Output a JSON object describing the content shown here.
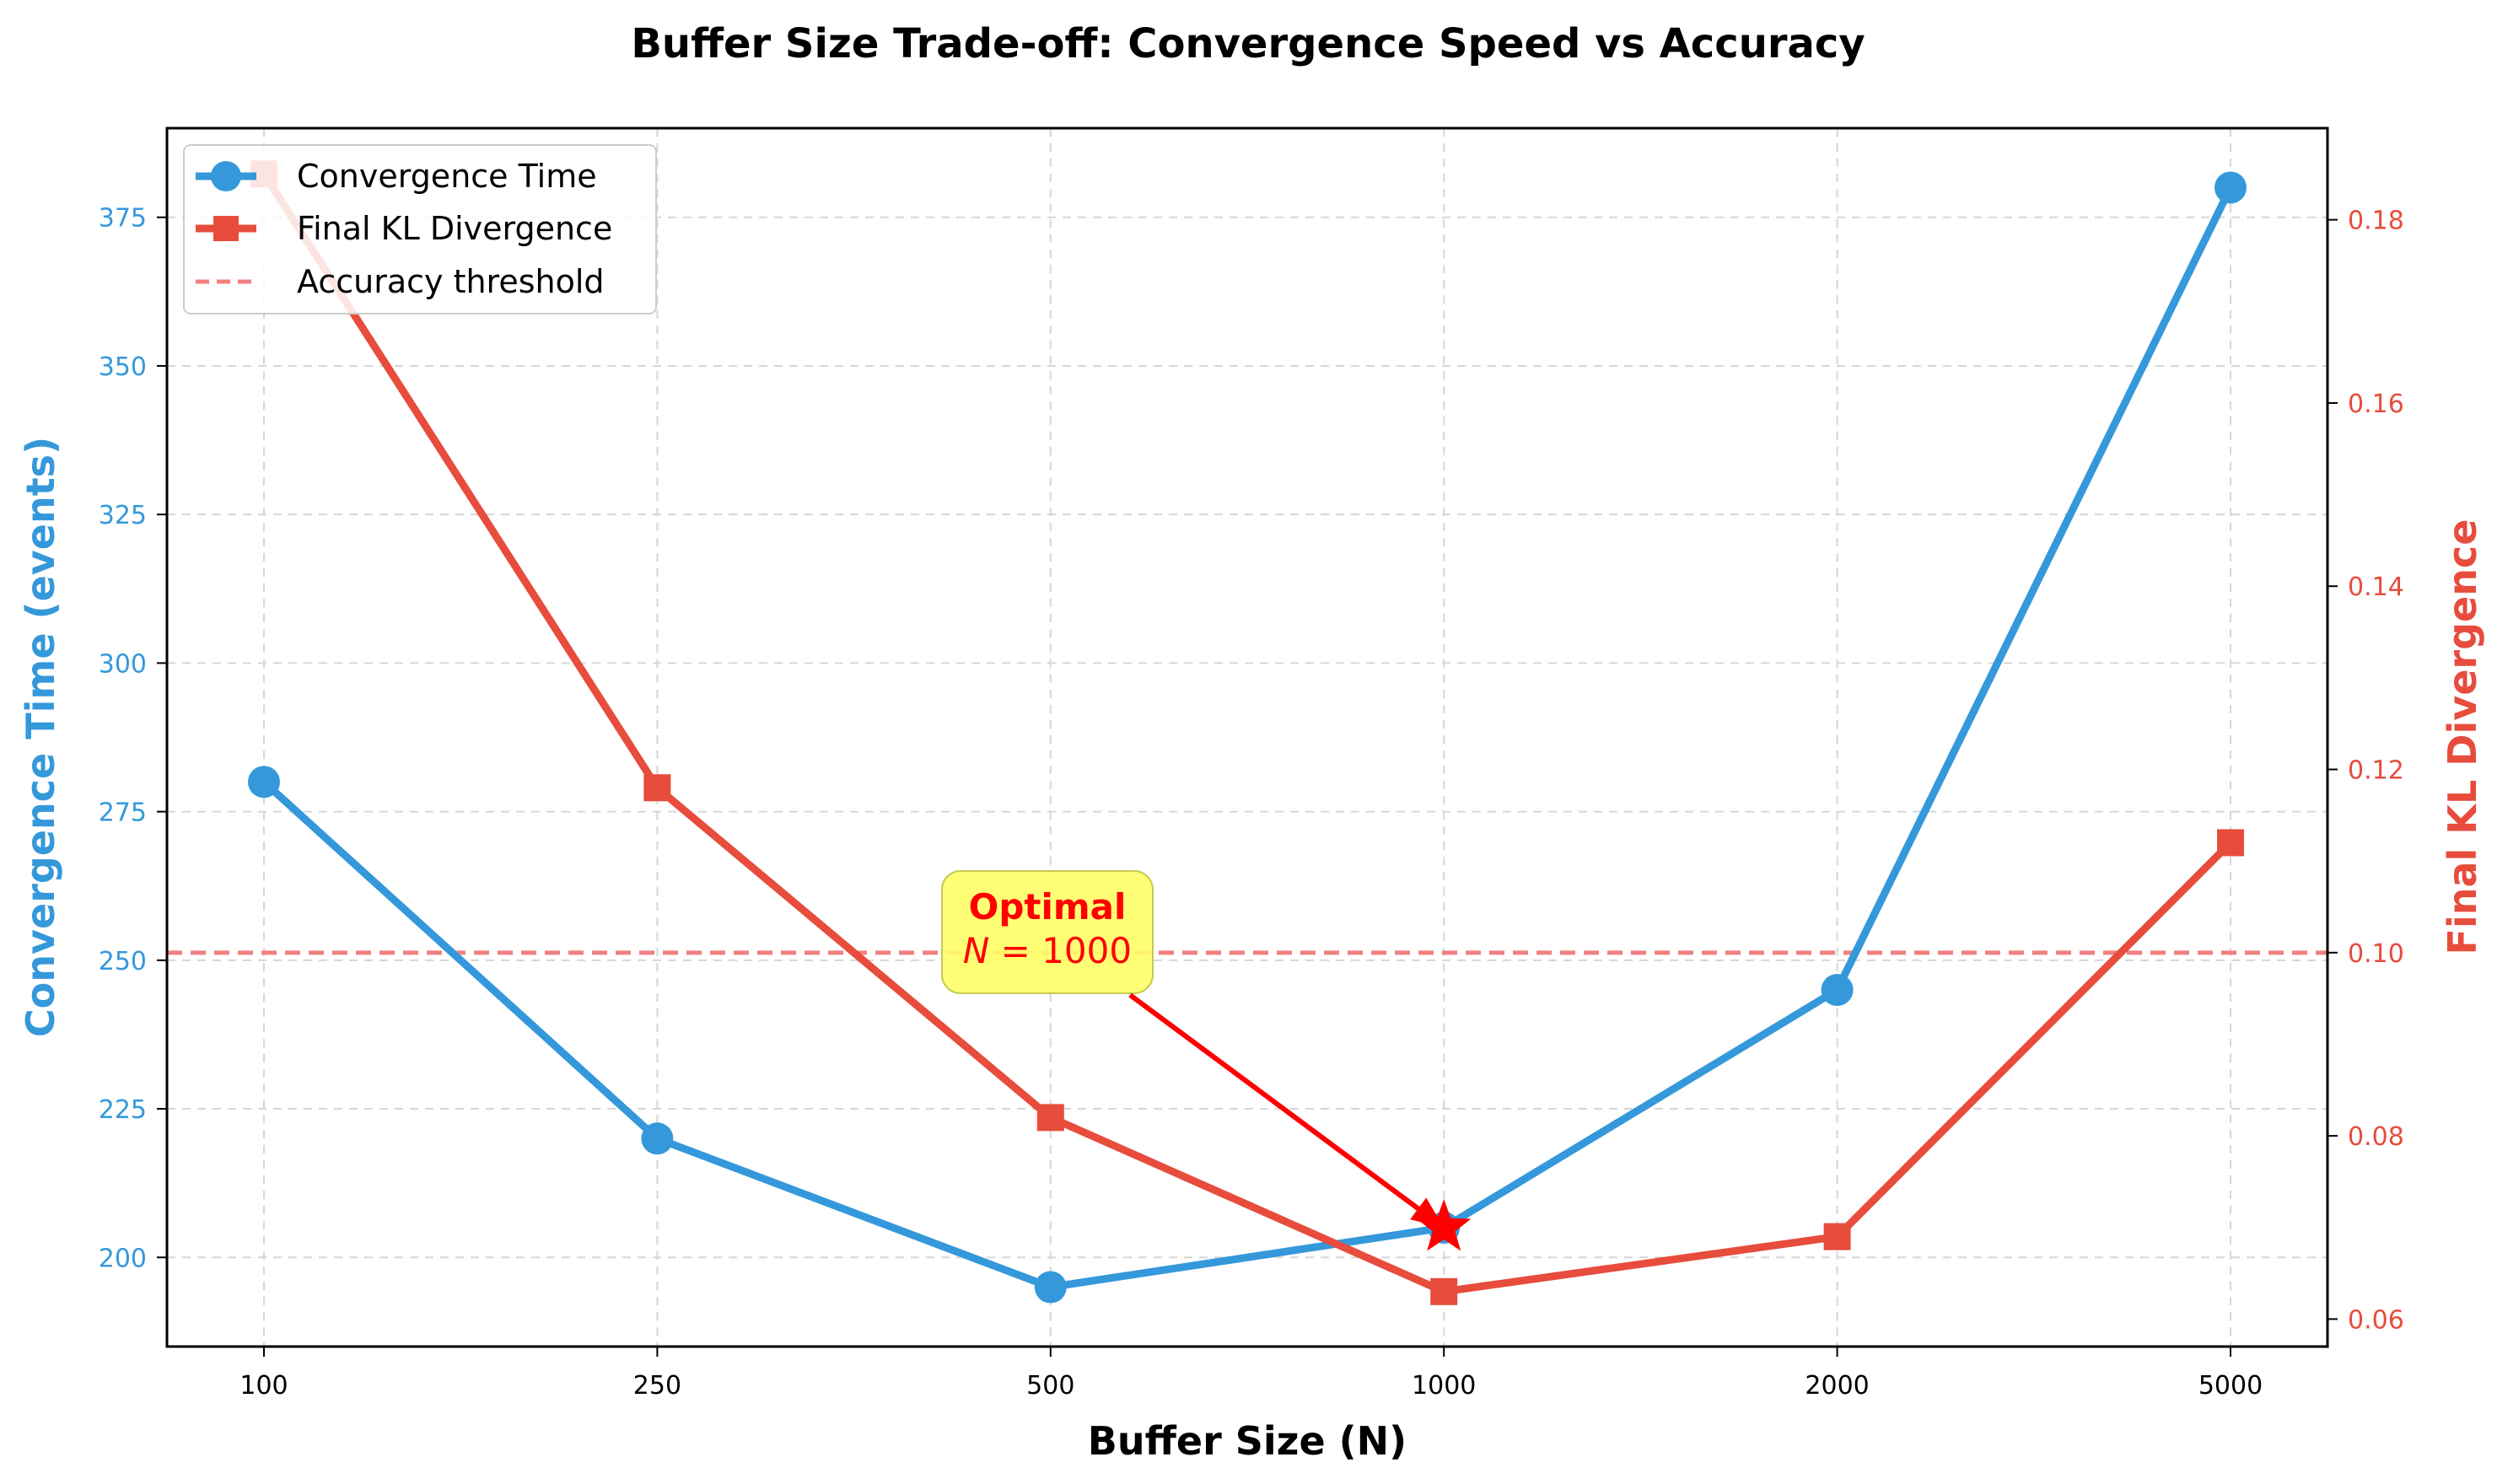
{
  "colors": {
    "convergence": "#3498db",
    "kl": "#e74c3c",
    "threshold": "#f08080",
    "annotation": "#ff0000",
    "annotation_box": "#ffff66",
    "star": "#ff0000"
  },
  "chart_data": {
    "type": "line",
    "title": "Buffer Size Trade-off: Convergence Speed vs Accuracy",
    "xlabel": "Buffer Size (N)",
    "ylabel_left": "Convergence Time (events)",
    "ylabel_right": "Final KL Divergence",
    "x_scale": "categorical",
    "categories": [
      "100",
      "250",
      "500",
      "1000",
      "2000",
      "5000"
    ],
    "ylim_left": [
      185,
      390
    ],
    "ylim_right": [
      0.057,
      0.19
    ],
    "yticks_left": [
      "200",
      "225",
      "250",
      "275",
      "300",
      "325",
      "350",
      "375"
    ],
    "yticks_right": [
      "0.06",
      "0.08",
      "0.10",
      "0.12",
      "0.14",
      "0.16",
      "0.18"
    ],
    "grid": true,
    "legend_position": "top-left",
    "series": [
      {
        "name": "Convergence Time",
        "axis": "left",
        "marker": "circle",
        "values": [
          280,
          220,
          195,
          205,
          245,
          380
        ]
      },
      {
        "name": "Final KL Divergence",
        "axis": "right",
        "marker": "square",
        "values": [
          0.185,
          0.118,
          0.082,
          0.063,
          0.069,
          0.112
        ]
      }
    ],
    "threshold": {
      "name": "Accuracy threshold",
      "axis": "right",
      "value": 0.1
    },
    "annotation": {
      "line1": "Optimal",
      "line2_symbol": "N",
      "line2_rest": " = 1000",
      "target_category": "1000",
      "target_value": 205
    }
  }
}
